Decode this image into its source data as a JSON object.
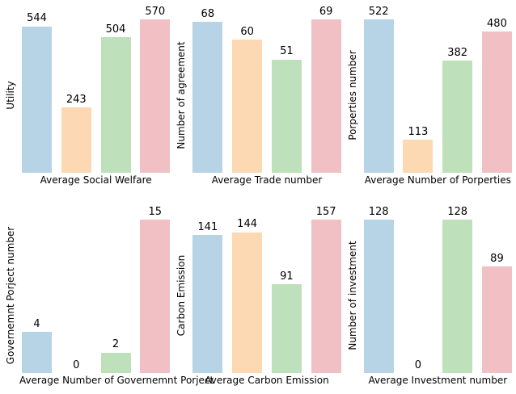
{
  "palette": [
    "#b7d3e6",
    "#fdd9b3",
    "#bee0ba",
    "#f1c0c4"
  ],
  "max_bar_percent": 89.6,
  "chart_data": [
    {
      "type": "bar",
      "categories": [
        "",
        "",
        "",
        ""
      ],
      "values": [
        544,
        243,
        504,
        570
      ],
      "title": "Average Social Welfare",
      "xlabel": "Average Social Welfare",
      "ylabel": "Utility",
      "bar_labels": [
        544,
        243,
        504,
        570
      ],
      "grid": false,
      "legend": "none"
    },
    {
      "type": "bar",
      "categories": [
        "",
        "",
        "",
        ""
      ],
      "values": [
        68,
        60,
        51,
        69
      ],
      "title": "Average Trade number",
      "xlabel": "Average Trade number",
      "ylabel": "Number of agreement",
      "bar_labels": [
        68,
        60,
        51,
        69
      ],
      "grid": false,
      "legend": "none"
    },
    {
      "type": "bar",
      "categories": [
        "",
        "",
        "",
        ""
      ],
      "values": [
        522,
        113,
        382,
        480
      ],
      "title": "Average Number of Porperties",
      "xlabel": "Average Number of Porperties",
      "ylabel": "Porperties number",
      "bar_labels": [
        522,
        113,
        382,
        480
      ],
      "grid": false,
      "legend": "none"
    },
    {
      "type": "bar",
      "categories": [
        "",
        "",
        "",
        ""
      ],
      "values": [
        4,
        0,
        2,
        15
      ],
      "title": "Average Number of Governemnt Porject",
      "xlabel": "Average Number of Governemnt Porject",
      "ylabel": "Governemnt Porject number",
      "bar_labels": [
        4,
        0,
        2,
        15
      ],
      "grid": false,
      "legend": "none"
    },
    {
      "type": "bar",
      "categories": [
        "",
        "",
        "",
        ""
      ],
      "values": [
        141,
        144,
        91,
        157
      ],
      "title": "Average Carbon Emission",
      "xlabel": "Average Carbon Emission",
      "ylabel": "Carbon Emission",
      "bar_labels": [
        141,
        144,
        91,
        157
      ],
      "grid": false,
      "legend": "none"
    },
    {
      "type": "bar",
      "categories": [
        "",
        "",
        "",
        ""
      ],
      "values": [
        128,
        0,
        128,
        89
      ],
      "title": "Average Investment number",
      "xlabel": "Average Investment number",
      "ylabel": "Number of investment",
      "bar_labels": [
        128,
        0,
        128,
        89
      ],
      "grid": false,
      "legend": "none"
    }
  ]
}
